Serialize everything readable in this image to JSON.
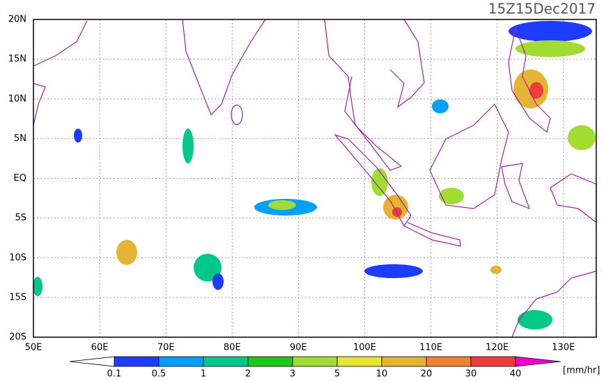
{
  "title": "15Z15Dec2017",
  "lat_labels": [
    "20N",
    "15N",
    "10N",
    "5N",
    "EQ",
    "5S",
    "10S",
    "15S",
    "20S"
  ],
  "lon_labels": [
    "50E",
    "60E",
    "70E",
    "80E",
    "90E",
    "100E",
    "110E",
    "120E",
    "130E"
  ],
  "colorbar": {
    "labels": [
      "0.1",
      "0.5",
      "1",
      "2",
      "3",
      "5",
      "10",
      "20",
      "30",
      "40"
    ],
    "colors": [
      "#ffffff",
      "#1e3cff",
      "#00a0ff",
      "#00c887",
      "#1ec81e",
      "#a0dc32",
      "#e6e632",
      "#e6b432",
      "#f08232",
      "#f03c3c",
      "#f000c8"
    ],
    "unit": "[mm/hr]"
  }
}
